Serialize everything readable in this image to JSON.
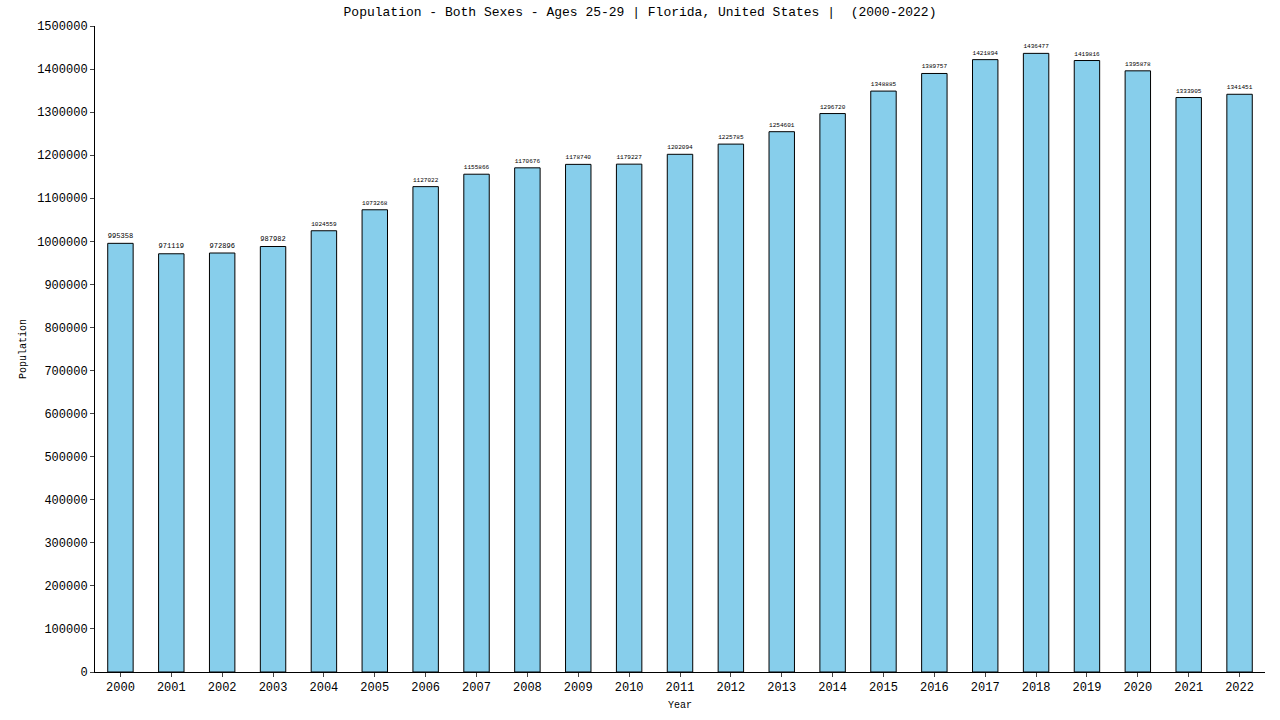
{
  "chart_data": {
    "type": "bar",
    "title": "Population - Both Sexes - Ages 25-29 | Florida, United States |  (2000-2022)",
    "x_label": "Year",
    "y_label": "Population",
    "categories": [
      "2000",
      "2001",
      "2002",
      "2003",
      "2004",
      "2005",
      "2006",
      "2007",
      "2008",
      "2009",
      "2010",
      "2011",
      "2012",
      "2013",
      "2014",
      "2015",
      "2016",
      "2017",
      "2018",
      "2019",
      "2020",
      "2021",
      "2022"
    ],
    "values": [
      995358,
      971119,
      972896,
      987982,
      1024559,
      1073268,
      1127022,
      1155866,
      1170676,
      1178740,
      1179227,
      1202094,
      1225785,
      1254601,
      1296720,
      1348885,
      1389757,
      1421894,
      1436477,
      1419816,
      1395878,
      1333905,
      1341451
    ],
    "color": "#87ceeb",
    "ylim": [
      0,
      1500000
    ],
    "yticks": [
      0,
      100000,
      200000,
      300000,
      400000,
      500000,
      600000,
      700000,
      800000,
      900000,
      1000000,
      1100000,
      1200000,
      1300000,
      1400000,
      1500000
    ],
    "grid": false,
    "data_labels": true
  }
}
